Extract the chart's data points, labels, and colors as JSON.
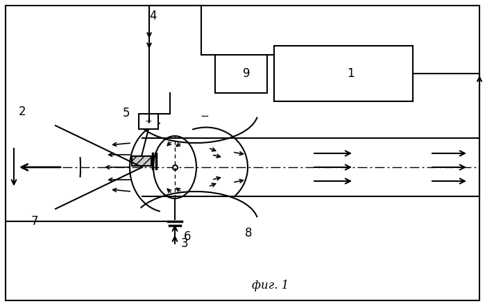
{
  "fig_width": 6.99,
  "fig_height": 4.41,
  "dpi": 100,
  "bg_color": "#ffffff",
  "line_color": "#000000",
  "caption": "фиг. 1",
  "caption_fontsize": 12
}
